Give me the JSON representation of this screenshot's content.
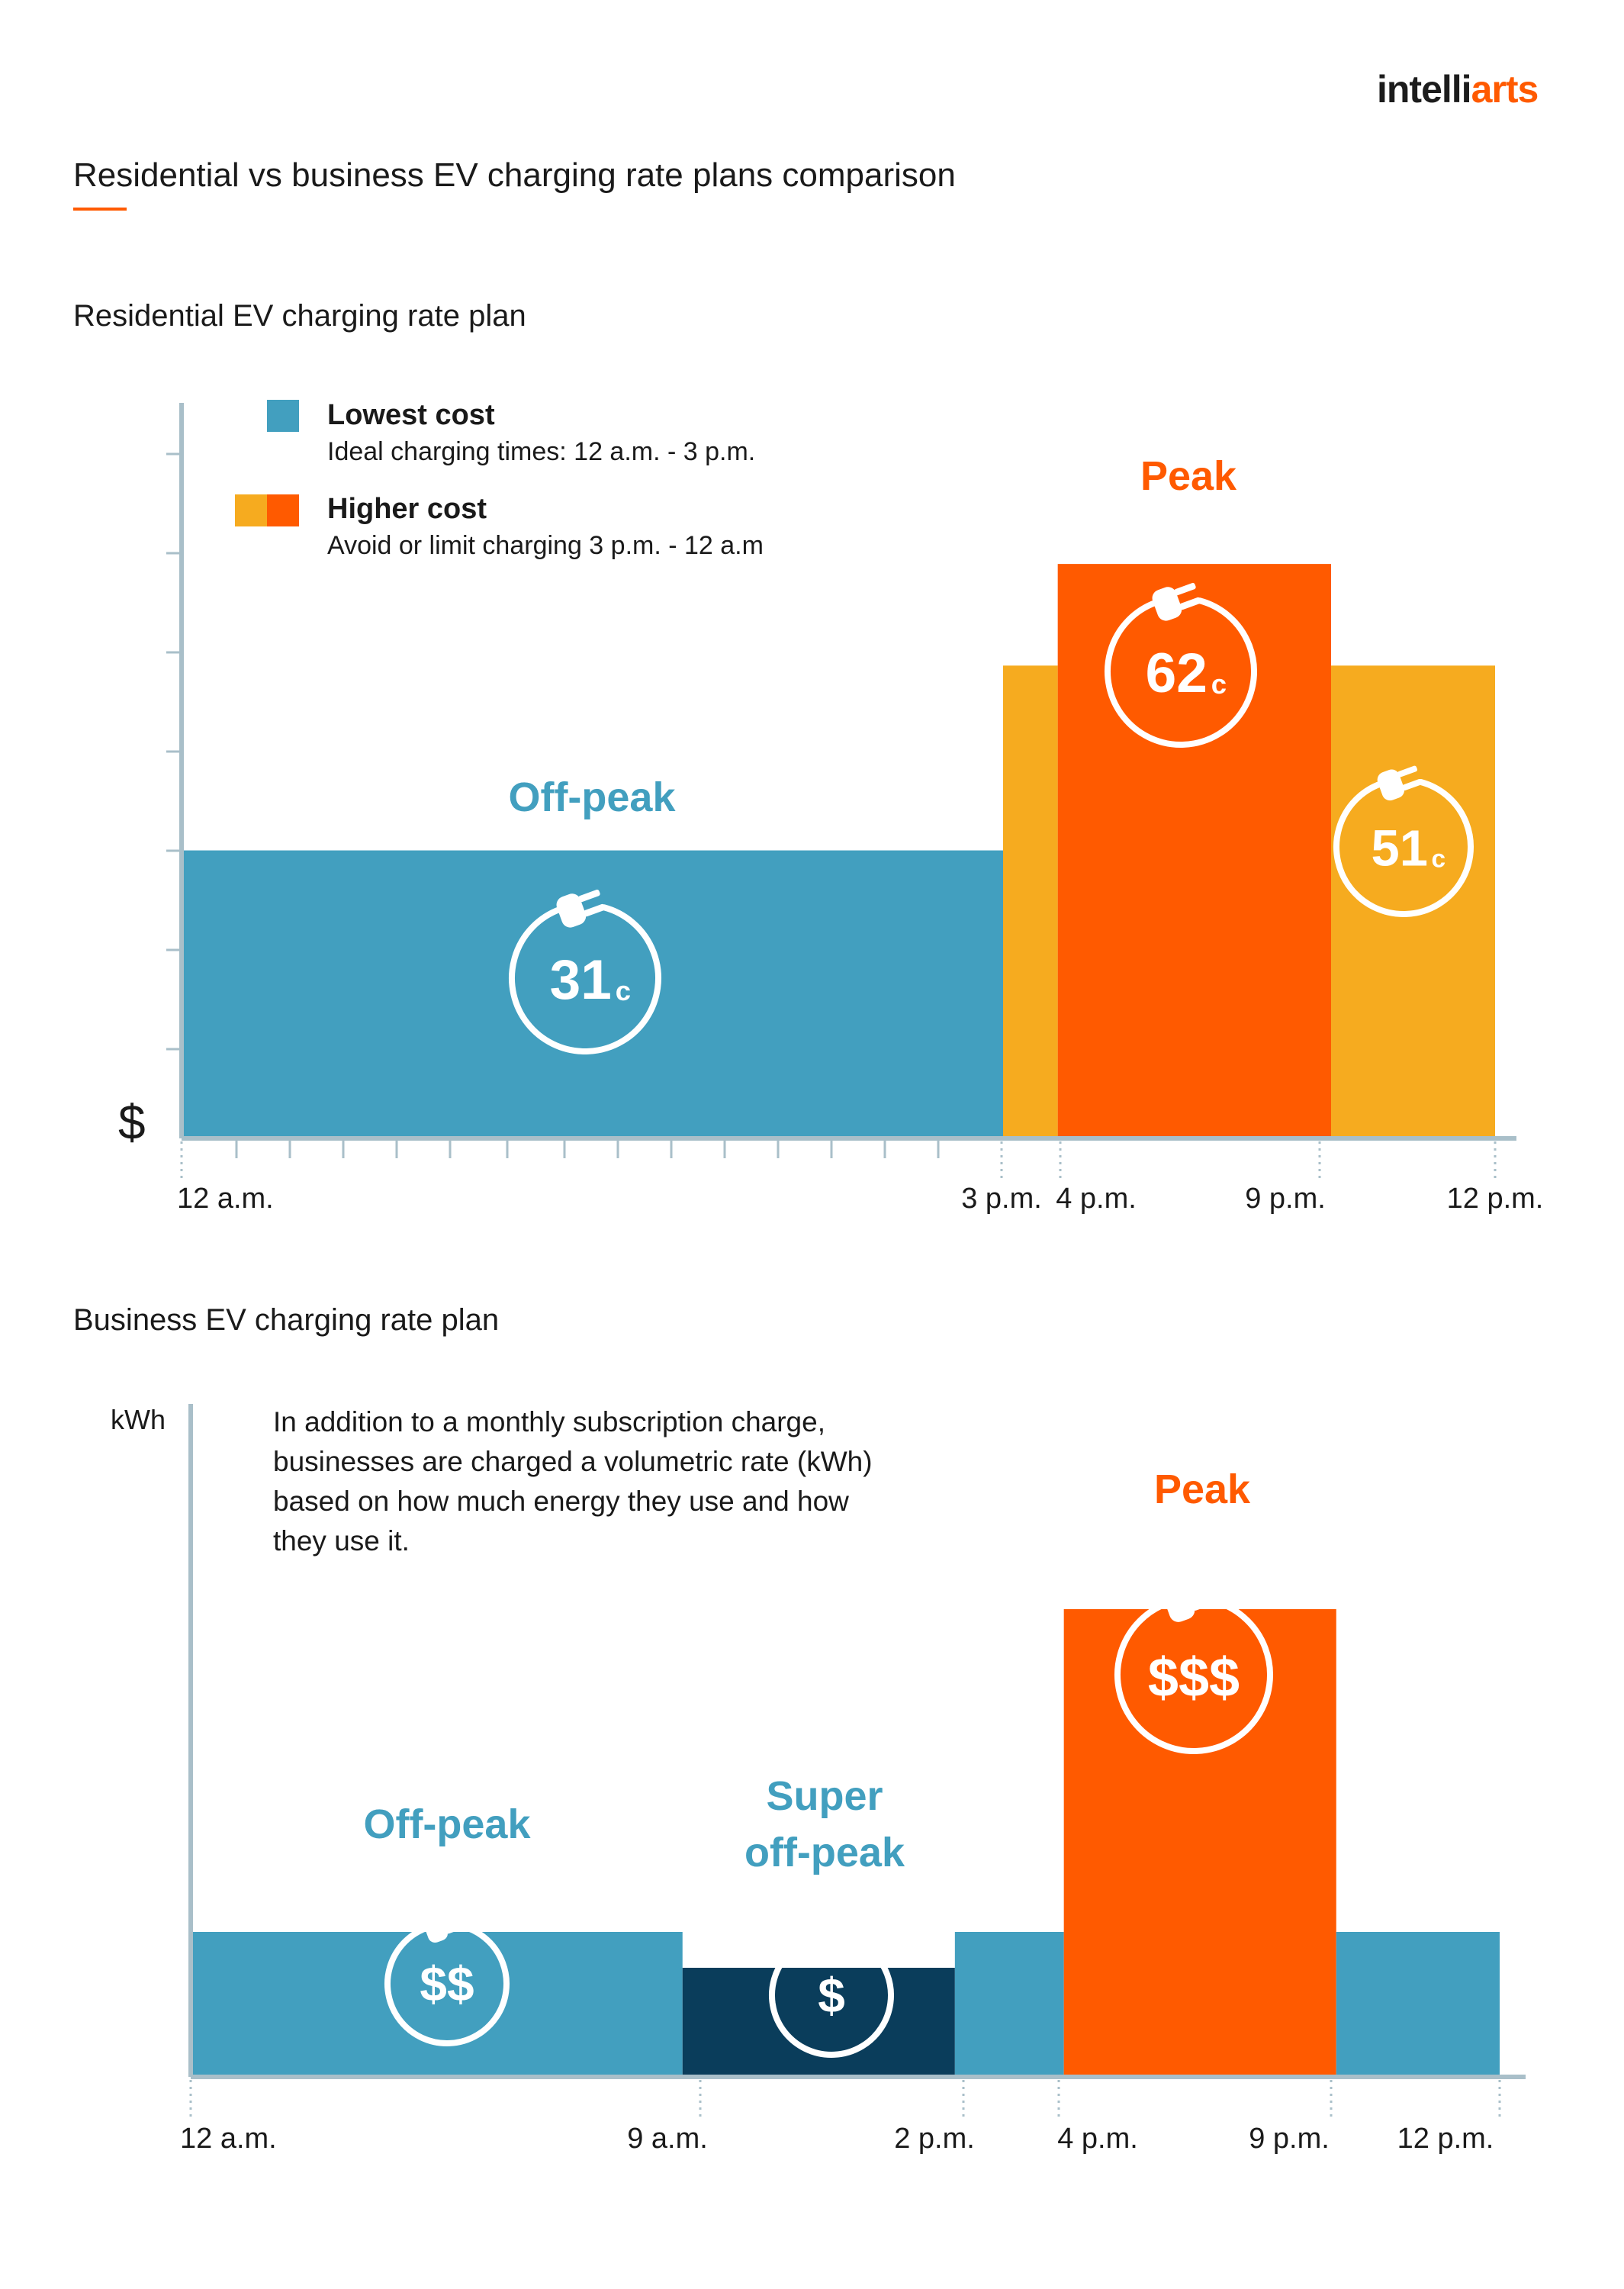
{
  "brand": {
    "part1": "intelli",
    "part2": "arts",
    "accent": "#ff5a00"
  },
  "title": "Residential vs business EV charging rate plans comparison",
  "colors": {
    "teal": "#429fbf",
    "navy": "#0a3d5b",
    "orange": "#ff5a00",
    "amber": "#f6ab1f",
    "axis": "#a9bfc9"
  },
  "chart_data": [
    {
      "type": "bar",
      "title": "Residential EV charging rate plan",
      "y_axis_symbol": "$",
      "legend": [
        {
          "title": "Lowest cost",
          "subtitle": "Ideal charging times: 12 a.m. - 3 p.m.",
          "colors": [
            "#429fbf"
          ]
        },
        {
          "title": "Higher cost",
          "subtitle": "Avoid or limit charging 3 p.m. - 12 a.m",
          "colors": [
            "#f6ab1f",
            "#ff5a00"
          ]
        }
      ],
      "tick_labels": [
        "12 a.m.",
        "3 p.m.",
        "4 p.m.",
        "9 p.m.",
        "12 p.m."
      ],
      "x_unit": "hour",
      "xlim": [
        0,
        24
      ],
      "ylim": [
        0,
        90
      ],
      "periods": [
        {
          "start": 0,
          "end": 15,
          "value": 31,
          "color": "#429fbf",
          "badge": "31",
          "badge_unit": "c"
        },
        {
          "start": 15,
          "end": 16,
          "value": 51,
          "color": "#f6ab1f"
        },
        {
          "start": 16,
          "end": 21,
          "value": 62,
          "color": "#ff5a00",
          "badge": "62",
          "badge_unit": "c"
        },
        {
          "start": 21,
          "end": 24,
          "value": 51,
          "color": "#f6ab1f",
          "badge": "51",
          "badge_unit": "c"
        }
      ],
      "annotations": [
        {
          "text": "Off-peak",
          "color": "#429fbf"
        },
        {
          "text": "Peak",
          "color": "#ff5a00"
        }
      ]
    },
    {
      "type": "bar",
      "title": "Business EV charging rate plan",
      "ylabel": "kWh",
      "note": [
        "In addition to a monthly subscription charge,",
        "businesses are charged a volumetric rate (kWh)",
        "based on how much energy they use and how",
        "they use it."
      ],
      "tick_labels": [
        "12 a.m.",
        "9 a.m.",
        "2 p.m.",
        "4 p.m.",
        "9 p.m.",
        "12 p.m."
      ],
      "x_unit": "hour",
      "xlim": [
        0,
        24
      ],
      "ylim": [
        0,
        10
      ],
      "periods": [
        {
          "start": 0,
          "end": 9,
          "value": 2,
          "color": "#429fbf",
          "badge": "$$"
        },
        {
          "start": 9,
          "end": 14,
          "value": 1.5,
          "color": "#0a3d5b",
          "badge": "$"
        },
        {
          "start": 14,
          "end": 16,
          "value": 2,
          "color": "#429fbf"
        },
        {
          "start": 16,
          "end": 21,
          "value": 6.5,
          "color": "#ff5a00",
          "badge": "$$$"
        },
        {
          "start": 21,
          "end": 24,
          "value": 2,
          "color": "#429fbf"
        }
      ],
      "annotations": [
        {
          "text": "Off-peak",
          "color": "#429fbf"
        },
        {
          "text": "Super",
          "color": "#429fbf"
        },
        {
          "text": "off-peak",
          "color": "#429fbf"
        },
        {
          "text": "Peak",
          "color": "#ff5a00"
        }
      ]
    }
  ]
}
